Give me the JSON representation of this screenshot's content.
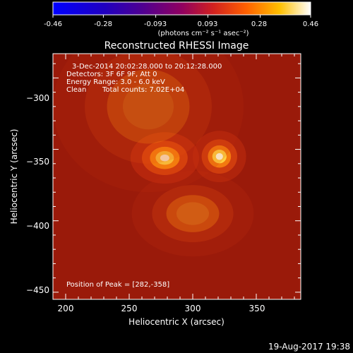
{
  "colorbar": {
    "ticks": [
      "-0.46",
      "-0.28",
      "-0.093",
      "0.093",
      "0.28",
      "0.46"
    ],
    "tick_values": [
      -0.46,
      -0.28,
      -0.093,
      0.093,
      0.28,
      0.46
    ],
    "range": [
      -0.46,
      0.46
    ],
    "unit_label": "(photons cm⁻² s⁻¹ asec⁻²)"
  },
  "title": "Reconstructed RHESSI Image",
  "annotations": {
    "time_range": "3-Dec-2014 20:02:28.000 to 20:12:28.000",
    "detectors": "Detectors: 3F 6F 9F, Att 0",
    "energy": "Energy Range: 3.0 - 6.0 keV",
    "method": "Clean",
    "total_counts": "Total counts: 7.02E+04",
    "peak": "Position of Peak = [282,-358]"
  },
  "footer": {
    "timestamp": "19-Aug-2017 19:38"
  },
  "chart_data": {
    "type": "heatmap",
    "title": "Reconstructed RHESSI Image",
    "xlabel": "Heliocentric X (arcsec)",
    "ylabel": "Heliocentric Y (arcsec)",
    "xlim": [
      190,
      385
    ],
    "ylim": [
      -455,
      -283
    ],
    "x_ticks": [
      200,
      250,
      300,
      350
    ],
    "x_tick_labels": [
      "200",
      "250",
      "300",
      "350"
    ],
    "y_ticks": [
      -300,
      -350,
      -400,
      -450
    ],
    "y_tick_labels": [
      "−300",
      "−350",
      "−400",
      "−450"
    ],
    "colormap": "hot",
    "background_color": "#9a1a0a",
    "sources": [
      {
        "x": 278,
        "y": -356,
        "peak": 0.46,
        "sigma_x": 9,
        "sigma_y": 6
      },
      {
        "x": 321,
        "y": -355,
        "peak": 0.38,
        "sigma_x": 7,
        "sigma_y": 6
      },
      {
        "x": 300,
        "y": -395,
        "peak": 0.16,
        "sigma_x": 16,
        "sigma_y": 10
      },
      {
        "x": 265,
        "y": -320,
        "peak": 0.12,
        "sigma_x": 25,
        "sigma_y": 20
      }
    ],
    "peak_position": [
      282,
      -358
    ]
  }
}
